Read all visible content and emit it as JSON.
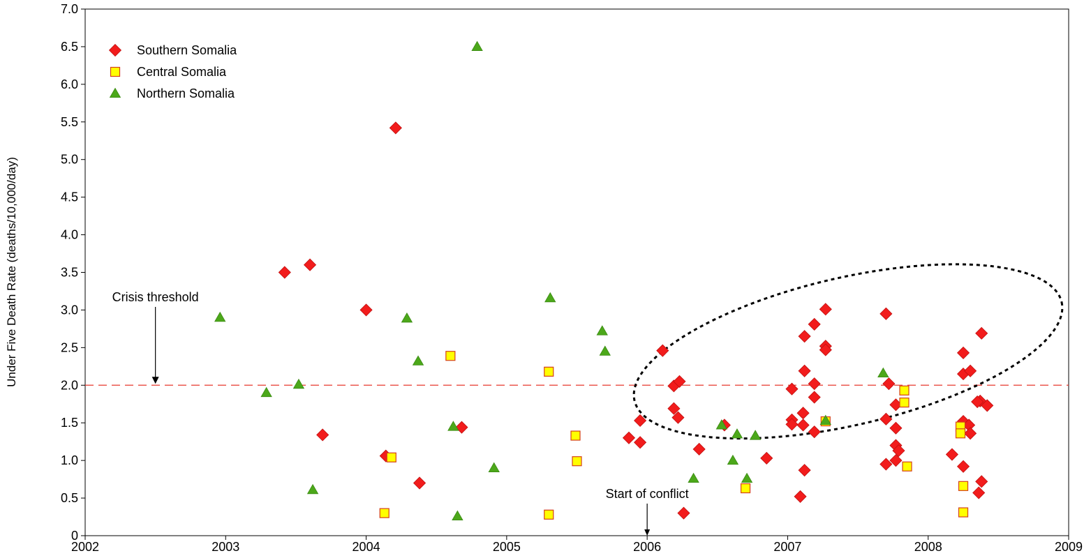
{
  "chart_data": {
    "type": "scatter",
    "title": "",
    "xlabel": "",
    "ylabel": "Under Five Death Rate (deaths/10,000/day)",
    "xlim": [
      2002,
      2009
    ],
    "ylim": [
      0,
      7.0
    ],
    "x_ticks": [
      "2002",
      "2003",
      "2004",
      "2005",
      "2006",
      "2007",
      "2008",
      "2009"
    ],
    "y_ticks": [
      "0",
      "0.5",
      "1.0",
      "1.5",
      "2.0",
      "2.5",
      "3.0",
      "3.5",
      "4.0",
      "4.5",
      "5.0",
      "5.5",
      "6.0",
      "6.5",
      "7.0"
    ],
    "grid": false,
    "legend_position": "top-left",
    "threshold": {
      "value": 2.0,
      "label": "Crisis threshold",
      "label_x": 2002.5,
      "color": "#e8392f"
    },
    "conflict_start": {
      "x": 2006.0,
      "label": "Start of conflict"
    },
    "ellipse": {
      "cx": 2007.43,
      "cy": 2.45,
      "rx": 1.56,
      "ry": 0.98,
      "rotation_deg": -13
    },
    "series": [
      {
        "name": "Southern Somalia",
        "marker": "diamond",
        "color": "#f21c1c",
        "stroke": "#c01010",
        "points": [
          [
            2003.42,
            3.5
          ],
          [
            2003.6,
            3.6
          ],
          [
            2003.69,
            1.34
          ],
          [
            2004.0,
            3.0
          ],
          [
            2004.14,
            1.06
          ],
          [
            2004.21,
            5.42
          ],
          [
            2004.38,
            0.7
          ],
          [
            2004.68,
            1.44
          ],
          [
            2005.87,
            1.3
          ],
          [
            2005.95,
            1.24
          ],
          [
            2005.95,
            1.53
          ],
          [
            2006.11,
            2.46
          ],
          [
            2006.19,
            1.99
          ],
          [
            2006.23,
            2.05
          ],
          [
            2006.19,
            1.69
          ],
          [
            2006.22,
            1.57
          ],
          [
            2006.26,
            0.3
          ],
          [
            2006.37,
            1.15
          ],
          [
            2006.55,
            1.47
          ],
          [
            2006.85,
            1.03
          ],
          [
            2007.03,
            1.95
          ],
          [
            2007.03,
            1.54
          ],
          [
            2007.03,
            1.48
          ],
          [
            2007.09,
            0.52
          ],
          [
            2007.12,
            2.65
          ],
          [
            2007.12,
            2.19
          ],
          [
            2007.11,
            1.63
          ],
          [
            2007.11,
            1.47
          ],
          [
            2007.12,
            0.87
          ],
          [
            2007.19,
            2.81
          ],
          [
            2007.19,
            2.02
          ],
          [
            2007.19,
            1.84
          ],
          [
            2007.19,
            1.38
          ],
          [
            2007.27,
            3.01
          ],
          [
            2007.27,
            2.52
          ],
          [
            2007.27,
            2.47
          ],
          [
            2007.7,
            2.95
          ],
          [
            2007.72,
            2.02
          ],
          [
            2007.7,
            1.55
          ],
          [
            2007.77,
            1.74
          ],
          [
            2007.77,
            1.43
          ],
          [
            2007.77,
            1.2
          ],
          [
            2007.79,
            1.13
          ],
          [
            2007.77,
            1.0
          ],
          [
            2007.7,
            0.95
          ],
          [
            2008.17,
            1.08
          ],
          [
            2008.25,
            2.43
          ],
          [
            2008.25,
            2.15
          ],
          [
            2008.3,
            2.19
          ],
          [
            2008.25,
            1.52
          ],
          [
            2008.29,
            1.47
          ],
          [
            2008.3,
            1.36
          ],
          [
            2008.25,
            0.92
          ],
          [
            2008.38,
            2.69
          ],
          [
            2008.37,
            1.79
          ],
          [
            2008.42,
            1.73
          ],
          [
            2008.35,
            1.78
          ],
          [
            2008.38,
            0.72
          ],
          [
            2008.36,
            0.57
          ]
        ]
      },
      {
        "name": "Central Somalia",
        "marker": "square",
        "color": "#ffff00",
        "stroke": "#d4401a",
        "points": [
          [
            2004.13,
            0.3
          ],
          [
            2004.18,
            1.04
          ],
          [
            2004.6,
            2.39
          ],
          [
            2005.3,
            2.18
          ],
          [
            2005.3,
            0.28
          ],
          [
            2005.49,
            1.33
          ],
          [
            2005.5,
            0.99
          ],
          [
            2006.7,
            0.63
          ],
          [
            2007.27,
            1.52
          ],
          [
            2007.83,
            1.93
          ],
          [
            2007.83,
            1.77
          ],
          [
            2007.85,
            0.92
          ],
          [
            2008.23,
            1.45
          ],
          [
            2008.23,
            1.36
          ],
          [
            2008.25,
            0.66
          ],
          [
            2008.25,
            0.31
          ]
        ]
      },
      {
        "name": "Northern Somalia",
        "marker": "triangle",
        "color": "#4ca81a",
        "stroke": "#3a8a12",
        "points": [
          [
            2002.96,
            2.9
          ],
          [
            2003.29,
            1.9
          ],
          [
            2003.52,
            2.01
          ],
          [
            2003.62,
            0.61
          ],
          [
            2004.29,
            2.89
          ],
          [
            2004.37,
            2.32
          ],
          [
            2004.62,
            1.45
          ],
          [
            2004.65,
            0.26
          ],
          [
            2004.79,
            6.5
          ],
          [
            2004.91,
            0.9
          ],
          [
            2005.31,
            3.16
          ],
          [
            2005.68,
            2.72
          ],
          [
            2005.7,
            2.45
          ],
          [
            2006.33,
            0.76
          ],
          [
            2006.53,
            1.47
          ],
          [
            2006.61,
            1.0
          ],
          [
            2006.64,
            1.35
          ],
          [
            2006.71,
            0.76
          ],
          [
            2006.77,
            1.33
          ],
          [
            2007.27,
            1.53
          ],
          [
            2007.68,
            2.16
          ]
        ]
      }
    ]
  }
}
